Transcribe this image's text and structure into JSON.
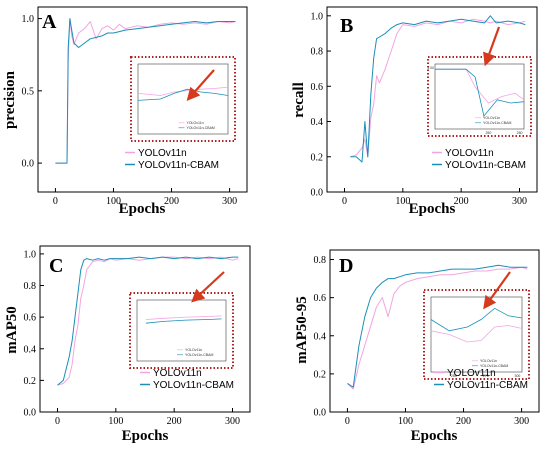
{
  "figure": {
    "series_colors": {
      "YOLOv11n": "#f2a5e4",
      "YOLOv11n-CBAM": "#1b8fb8"
    },
    "callout_color": "#b22222",
    "callout_arrow_color": "#d63a1e"
  },
  "chart_data": [
    {
      "type": "line",
      "letter": "A",
      "title": "",
      "xlabel": "Epochs",
      "ylabel": "precision",
      "xlim": [
        -30,
        330
      ],
      "ylim": [
        -0.2,
        1.08
      ],
      "xticks": [
        0,
        100,
        200,
        300
      ],
      "yticks": [
        0.0,
        0.5,
        1.0
      ],
      "ytick_labels": [
        "0.0",
        "0.5",
        "1.0"
      ],
      "legend": "bottom-center",
      "series": [
        {
          "name": "YOLOv11n",
          "x": [
            0,
            20,
            22,
            25,
            28,
            32,
            40,
            50,
            60,
            70,
            80,
            90,
            100,
            110,
            120,
            140,
            160,
            180,
            200,
            220,
            240,
            260,
            280,
            300,
            310
          ],
          "y": [
            0,
            0,
            0.72,
            1.0,
            0.88,
            0.82,
            0.9,
            0.93,
            0.98,
            0.86,
            0.93,
            0.95,
            0.92,
            0.96,
            0.93,
            0.95,
            0.94,
            0.96,
            0.97,
            0.96,
            0.97,
            0.96,
            0.98,
            0.97,
            0.98
          ]
        },
        {
          "name": "YOLOv11n-CBAM",
          "x": [
            0,
            20,
            22,
            25,
            28,
            32,
            40,
            50,
            60,
            70,
            80,
            90,
            100,
            110,
            120,
            140,
            160,
            180,
            200,
            220,
            240,
            260,
            280,
            300,
            310
          ],
          "y": [
            0,
            0,
            0.8,
            1.0,
            0.92,
            0.83,
            0.8,
            0.83,
            0.86,
            0.87,
            0.88,
            0.9,
            0.9,
            0.91,
            0.92,
            0.93,
            0.94,
            0.95,
            0.96,
            0.97,
            0.98,
            0.97,
            0.98,
            0.98,
            0.98
          ]
        }
      ],
      "inset": {
        "legend": [
          "YOLOv11n",
          "YOLOv11n-CBAM"
        ],
        "tick_labels": []
      }
    },
    {
      "type": "line",
      "letter": "B",
      "title": "",
      "xlabel": "Epochs",
      "ylabel": "recall",
      "xlim": [
        -30,
        330
      ],
      "ylim": [
        0.0,
        1.05
      ],
      "xticks": [
        0,
        100,
        200,
        300
      ],
      "yticks": [
        0.0,
        0.2,
        0.4,
        0.6,
        0.8,
        1.0
      ],
      "ytick_labels": [
        "0.0",
        "0.2",
        "0.4",
        "0.6",
        "0.8",
        "1.0"
      ],
      "legend": "bottom-right",
      "series": [
        {
          "name": "YOLOv11n",
          "x": [
            10,
            20,
            30,
            35,
            40,
            45,
            50,
            55,
            60,
            70,
            80,
            90,
            100,
            120,
            140,
            160,
            180,
            200,
            220,
            240,
            250,
            260,
            280,
            300,
            310
          ],
          "y": [
            0.2,
            0.21,
            0.25,
            0.3,
            0.2,
            0.42,
            0.5,
            0.66,
            0.62,
            0.7,
            0.8,
            0.9,
            0.95,
            0.94,
            0.96,
            0.95,
            0.97,
            0.96,
            0.98,
            0.97,
            0.96,
            0.97,
            0.95,
            0.96,
            0.97
          ]
        },
        {
          "name": "YOLOv11n-CBAM",
          "x": [
            10,
            20,
            30,
            35,
            40,
            45,
            50,
            55,
            60,
            70,
            80,
            90,
            100,
            120,
            140,
            160,
            180,
            200,
            220,
            240,
            250,
            260,
            280,
            300,
            310
          ],
          "y": [
            0.2,
            0.2,
            0.17,
            0.4,
            0.2,
            0.55,
            0.76,
            0.87,
            0.88,
            0.9,
            0.93,
            0.95,
            0.96,
            0.95,
            0.97,
            0.96,
            0.97,
            0.98,
            0.97,
            0.96,
            1.0,
            0.96,
            0.97,
            0.96,
            0.95
          ]
        }
      ],
      "inset": {
        "legend": [
          "YOLOv11n",
          "YOLOv11n-CBAM"
        ],
        "tick_labels": [
          "1.00",
          "250",
          "260"
        ]
      }
    },
    {
      "type": "line",
      "letter": "C",
      "title": "",
      "xlabel": "Epochs",
      "ylabel": "mAP50",
      "xlim": [
        -30,
        330
      ],
      "ylim": [
        0.0,
        1.05
      ],
      "xticks": [
        0,
        100,
        200,
        300
      ],
      "yticks": [
        0.0,
        0.2,
        0.4,
        0.6,
        0.8,
        1.0
      ],
      "ytick_labels": [
        "0.0",
        "0.2",
        "0.4",
        "0.6",
        "0.8",
        "1.0"
      ],
      "legend": "bottom-right",
      "series": [
        {
          "name": "YOLOv11n",
          "x": [
            0,
            10,
            20,
            25,
            30,
            35,
            40,
            45,
            50,
            60,
            70,
            80,
            90,
            100,
            120,
            140,
            160,
            180,
            200,
            220,
            240,
            260,
            280,
            300,
            310
          ],
          "y": [
            0.17,
            0.18,
            0.22,
            0.3,
            0.45,
            0.55,
            0.72,
            0.8,
            0.9,
            0.95,
            0.96,
            0.95,
            0.97,
            0.96,
            0.97,
            0.96,
            0.97,
            0.98,
            0.98,
            0.97,
            0.98,
            0.97,
            0.98,
            0.96,
            0.97
          ]
        },
        {
          "name": "YOLOv11n-CBAM",
          "x": [
            0,
            10,
            20,
            25,
            30,
            35,
            40,
            45,
            50,
            60,
            70,
            80,
            90,
            100,
            120,
            140,
            160,
            180,
            200,
            220,
            240,
            260,
            280,
            300,
            310
          ],
          "y": [
            0.17,
            0.2,
            0.35,
            0.45,
            0.6,
            0.75,
            0.9,
            0.96,
            0.97,
            0.96,
            0.97,
            0.96,
            0.97,
            0.97,
            0.97,
            0.98,
            0.97,
            0.98,
            0.97,
            0.98,
            0.97,
            0.98,
            0.97,
            0.98,
            0.98
          ]
        }
      ],
      "inset": {
        "legend": [
          "YOLOv11n",
          "YOLOv11n-CBAM"
        ],
        "tick_labels": []
      }
    },
    {
      "type": "line",
      "letter": "D",
      "title": "",
      "xlabel": "Epochs",
      "ylabel": "mAP50-95",
      "xlim": [
        -30,
        330
      ],
      "ylim": [
        0.0,
        0.85
      ],
      "xticks": [
        0,
        100,
        200,
        300
      ],
      "yticks": [
        0.0,
        0.2,
        0.4,
        0.6,
        0.8
      ],
      "ytick_labels": [
        "0.0",
        "0.2",
        "0.4",
        "0.6",
        "0.8"
      ],
      "legend": "bottom-right",
      "series": [
        {
          "name": "YOLOv11n",
          "x": [
            0,
            10,
            20,
            30,
            40,
            50,
            60,
            70,
            80,
            90,
            100,
            120,
            140,
            160,
            180,
            200,
            220,
            240,
            260,
            280,
            300,
            310
          ],
          "y": [
            0.15,
            0.12,
            0.25,
            0.35,
            0.45,
            0.55,
            0.6,
            0.5,
            0.62,
            0.66,
            0.68,
            0.7,
            0.71,
            0.72,
            0.72,
            0.73,
            0.74,
            0.74,
            0.75,
            0.75,
            0.76,
            0.75
          ]
        },
        {
          "name": "YOLOv11n-CBAM",
          "x": [
            0,
            10,
            20,
            30,
            40,
            50,
            60,
            70,
            80,
            90,
            100,
            120,
            140,
            160,
            180,
            200,
            220,
            240,
            260,
            280,
            300,
            310
          ],
          "y": [
            0.15,
            0.13,
            0.35,
            0.5,
            0.6,
            0.65,
            0.68,
            0.7,
            0.7,
            0.71,
            0.72,
            0.73,
            0.73,
            0.74,
            0.75,
            0.75,
            0.75,
            0.76,
            0.77,
            0.76,
            0.76,
            0.76
          ]
        }
      ],
      "inset": {
        "legend": [
          "YOLOv11n",
          "YOLOv11n-CBAM"
        ],
        "tick_labels": [
          "250",
          "275",
          "300"
        ]
      }
    }
  ]
}
